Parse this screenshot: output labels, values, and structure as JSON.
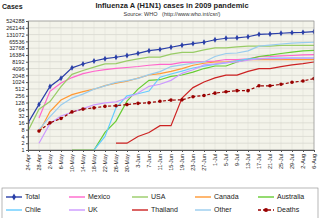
{
  "chart_data": {
    "type": "line",
    "title": "Influenza A (H1N1) cases in 2009 pandemic",
    "subtitle": "Source: WHO   (http://www.who.int/csr/)",
    "y_label": "Cases",
    "log": "y",
    "grid": true,
    "legend": "bottom",
    "categories": [
      "24-Apr",
      "28-Apr",
      "2-May",
      "6-May",
      "10-May",
      "14-May",
      "18-May",
      "22-May",
      "26-May",
      "30-May",
      "3-Jun",
      "7-Jun",
      "11-Jun",
      "15-Jun",
      "19-Jun",
      "23-Jun",
      "27-Jun",
      "1-Jul",
      "5-Jul",
      "9-Jul",
      "13-Jul",
      "17-Jul",
      "21-Jul",
      "25-Jul",
      "29-Jul",
      "2-Aug",
      "6-Aug"
    ],
    "ylim": [
      1,
      524288
    ],
    "yticks": [
      1,
      2,
      4,
      8,
      16,
      32,
      64,
      128,
      256,
      512,
      1024,
      2048,
      4096,
      8192,
      16384,
      32768,
      65536,
      131072,
      262144,
      524288
    ],
    "series": [
      {
        "name": "Total",
        "color": "#2a3fa8",
        "marker": "diamond",
        "line_style": "solid",
        "values": [
          16,
          105,
          658,
          1516,
          4379,
          6497,
          8829,
          11168,
          12954,
          15510,
          19273,
          25288,
          28774,
          35928,
          44287,
          52160,
          59814,
          77201,
          89921,
          94512,
          105000,
          134000,
          140000,
          150000,
          160000,
          165000,
          177457
        ]
      },
      {
        "name": "Mexico",
        "color": "#ff66cc",
        "line_style": "solid",
        "values": [
          null,
          26,
          397,
          942,
          1626,
          2446,
          3103,
          3648,
          4174,
          4541,
          5029,
          5717,
          6241,
          6241,
          7624,
          7847,
          8279,
          8680,
          10262,
          10262,
          11000,
          13646,
          14000,
          14861,
          15500,
          16442,
          17000
        ]
      },
      {
        "name": "USA",
        "color": "#99cc66",
        "line_style": "solid",
        "values": [
          7,
          64,
          141,
          642,
          2254,
          3352,
          4714,
          6552,
          6764,
          8975,
          11054,
          13217,
          13217,
          17855,
          21449,
          21449,
          27717,
          33902,
          33902,
          37246,
          40617,
          40617,
          40617,
          43771,
          43771,
          43771,
          43771
        ]
      },
      {
        "name": "Canada",
        "color": "#ff9933",
        "line_style": "solid",
        "values": [
          null,
          6,
          51,
          165,
          284,
          389,
          496,
          719,
          921,
          1118,
          1530,
          2115,
          2446,
          3089,
          4049,
          5710,
          7005,
          7983,
          7983,
          9000,
          10156,
          10156,
          10156,
          10156,
          10156,
          10156,
          10156
        ]
      },
      {
        "name": "Australia",
        "color": "#66cc33",
        "line_style": "solid",
        "values": [
          null,
          null,
          null,
          null,
          1,
          1,
          1,
          6,
          19,
          147,
          501,
          1224,
          1307,
          1823,
          2112,
          2857,
          4090,
          5298,
          5298,
          8000,
          10387,
          14000,
          16000,
          19000,
          22000,
          25000,
          26000
        ]
      },
      {
        "name": "Chile",
        "color": "#66ccff",
        "line_style": "solid",
        "values": [
          null,
          null,
          null,
          null,
          null,
          null,
          1,
          4,
          74,
          250,
          313,
          411,
          1694,
          2335,
          3125,
          4315,
          5186,
          6211,
          7342,
          9000,
          10926,
          11000,
          12000,
          12000,
          12000,
          12000,
          12000
        ]
      },
      {
        "name": "UK",
        "color": "#cc99ff",
        "line_style": "solid",
        "values": [
          null,
          2,
          15,
          32,
          47,
          68,
          101,
          122,
          137,
          203,
          339,
          666,
          822,
          1226,
          2506,
          3597,
          5937,
          6538,
          7447,
          8000,
          9718,
          11159,
          11159,
          11159,
          11912,
          11912,
          11912
        ]
      },
      {
        "name": "Thailand",
        "color": "#cc2222",
        "line_style": "solid",
        "values": [
          null,
          null,
          null,
          null,
          null,
          null,
          null,
          null,
          2,
          2,
          4,
          6,
          12,
          12,
          200,
          584,
          1029,
          1584,
          2076,
          2076,
          3071,
          4057,
          4057,
          5000,
          6000,
          6776,
          8000
        ]
      },
      {
        "name": "Other",
        "color": "#99ccee",
        "line_style": "solid",
        "values": [
          null,
          8,
          30,
          100,
          200,
          300,
          500,
          700,
          1000,
          1200,
          1500,
          2200,
          3000,
          5000,
          6000,
          7000,
          8000,
          14000,
          19000,
          20000,
          25000,
          40000,
          45000,
          50000,
          55000,
          58000,
          60000
        ]
      },
      {
        "name": "Deaths",
        "color": "#990000",
        "marker": "circle",
        "line_style": "dashed",
        "values": [
          null,
          7,
          16,
          25,
          49,
          65,
          74,
          86,
          92,
          103,
          117,
          125,
          144,
          163,
          167,
          231,
          263,
          332,
          382,
          429,
          429,
          700,
          700,
          816,
          1000,
          1154,
          1462
        ]
      }
    ]
  }
}
